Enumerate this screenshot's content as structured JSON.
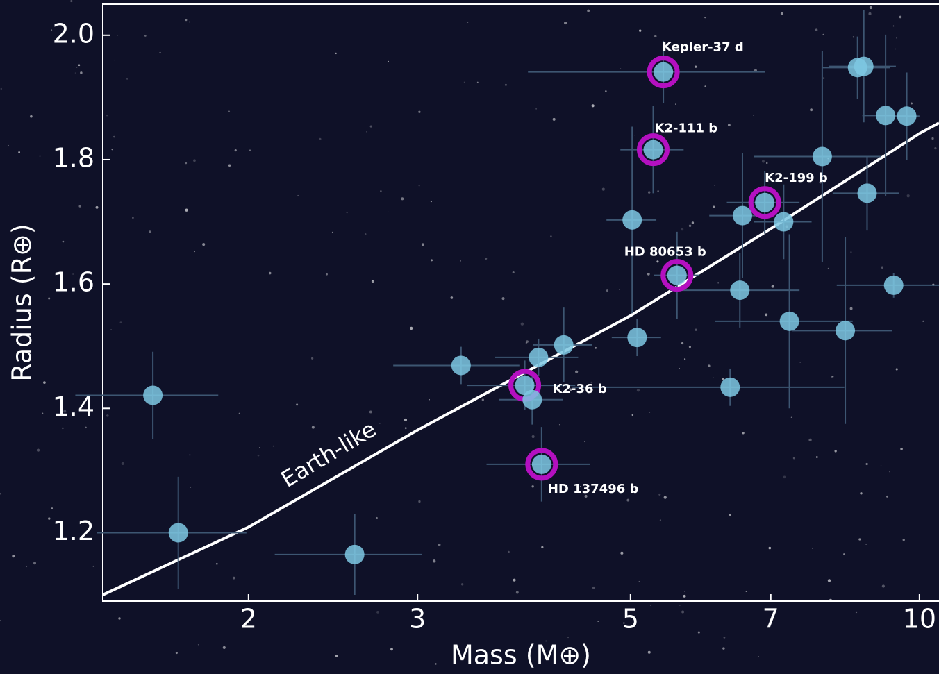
{
  "chart_data": {
    "type": "scatter",
    "x_label": "Mass (M⊕)",
    "y_label": "Radius (R⊕)",
    "x_log": true,
    "xlim": [
      1.41,
      10.48
    ],
    "ylim": [
      1.09,
      2.05
    ],
    "xticks": [
      2,
      3,
      5,
      7,
      10
    ],
    "yticks": [
      1.2,
      1.4,
      1.6,
      1.8,
      {
        "value": 2,
        "label": "2.0"
      }
    ],
    "color": "#7ec8e3",
    "highlight_color": "#b410c0",
    "errorbar_color": "#3d5672",
    "x": [
      1.59,
      1.69,
      2.58,
      3.33,
      3.88,
      3.95,
      4.01,
      4.04,
      4.26,
      5.08,
      5.02,
      5.28,
      5.41,
      5.59,
      6.35,
      6.5,
      6.54,
      6.9,
      7.22,
      7.32,
      7.92,
      8.37,
      8.62,
      8.75,
      8.82,
      9.22,
      9.4,
      9.7
    ],
    "values": [
      1.421,
      1.2,
      1.165,
      1.469,
      1.437,
      1.414,
      1.482,
      1.31,
      1.502,
      1.514,
      1.703,
      1.816,
      1.941,
      1.614,
      1.434,
      1.59,
      1.71,
      1.731,
      1.7,
      1.54,
      1.805,
      1.525,
      1.948,
      1.95,
      1.746,
      1.871,
      1.598,
      1.87
    ],
    "xerr": [
      0.27,
      0.3,
      0.45,
      0.5,
      0.5,
      0.3,
      0.4,
      0.5,
      0.3,
      0.3,
      0.3,
      0.4,
      1.5,
      0.3,
      2.0,
      1.0,
      0.5,
      0.6,
      0.5,
      1.2,
      1.2,
      1.0,
      0.7,
      0.7,
      0.7,
      0.5,
      1.2,
      0.3
    ],
    "yerr": [
      0.07,
      0.09,
      0.065,
      0.03,
      0.04,
      0.04,
      0.03,
      0.06,
      0.06,
      0.03,
      0.15,
      0.07,
      0.05,
      0.07,
      0.03,
      0.06,
      0.1,
      0.05,
      0.06,
      0.14,
      0.17,
      0.15,
      0.05,
      0.09,
      0.06,
      0.13,
      0.02,
      0.07
    ],
    "point_labels": [
      null,
      null,
      null,
      null,
      "K2-36 b",
      null,
      null,
      "HD 137496 b",
      null,
      null,
      null,
      "K2-111 b",
      "Kepler-37 d",
      "HD 80653 b",
      null,
      null,
      null,
      "K2-199 b",
      null,
      null,
      null,
      null,
      null,
      null,
      null,
      null,
      null,
      null
    ],
    "model_curve": {
      "label": "Earth-like",
      "color": "#ffffff",
      "x": [
        1.41,
        2,
        3,
        5,
        7,
        10,
        10.48
      ],
      "y": [
        1.1,
        1.209,
        1.365,
        1.549,
        1.689,
        1.842,
        1.859
      ]
    }
  }
}
